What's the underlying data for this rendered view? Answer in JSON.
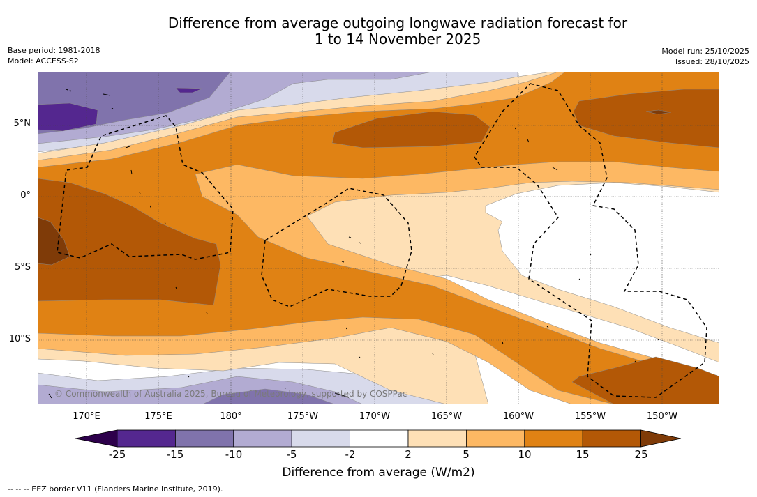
{
  "header": {
    "title_line1": "Difference from average outgoing longwave radiation forecast for",
    "title_line2": "1 to 14 November 2025",
    "base_period": "Base period: 1981-2018",
    "model": "Model: ACCESS-S2",
    "model_run": "Model run: 25/10/2025",
    "issued": "Issued: 28/10/2025"
  },
  "map": {
    "lat_labels": [
      "5°N",
      "0°",
      "5°S",
      "10°S"
    ],
    "lon_labels": [
      "170°E",
      "175°E",
      "180°",
      "175°W",
      "170°W",
      "165°W",
      "160°W",
      "155°W",
      "150°W"
    ],
    "copyright": "© Commonwealth of Australia 2025, Bureau of Meteorology, supported by COSPPac",
    "bands": [
      {
        "name": "band-purple-dark",
        "color": "#54278f"
      },
      {
        "name": "band-purple-mid",
        "color": "#8073ac"
      },
      {
        "name": "band-purple-light",
        "color": "#b2abd2"
      },
      {
        "name": "band-lavender",
        "color": "#d8daeb"
      },
      {
        "name": "band-neutral",
        "color": "#ffffff"
      },
      {
        "name": "band-cream",
        "color": "#fee0b6"
      },
      {
        "name": "band-light-orange",
        "color": "#fdb863"
      },
      {
        "name": "band-orange",
        "color": "#e08214"
      },
      {
        "name": "band-dark-orange",
        "color": "#b35806"
      },
      {
        "name": "band-brown",
        "color": "#7f3b08"
      }
    ]
  },
  "colorbar": {
    "colors": [
      "#2d004b",
      "#54278f",
      "#8073ac",
      "#b2abd2",
      "#d8daeb",
      "#ffffff",
      "#fee0b6",
      "#fdb863",
      "#e08214",
      "#b35806",
      "#7f3b08"
    ],
    "labels": [
      "-25",
      "-15",
      "-10",
      "-5",
      "-2",
      "2",
      "5",
      "10",
      "15",
      "25"
    ],
    "title": "Difference from average (W/m2)"
  },
  "footnote": "--  --  -- EEZ border V11 (Flanders Marine Institute, 2019)."
}
